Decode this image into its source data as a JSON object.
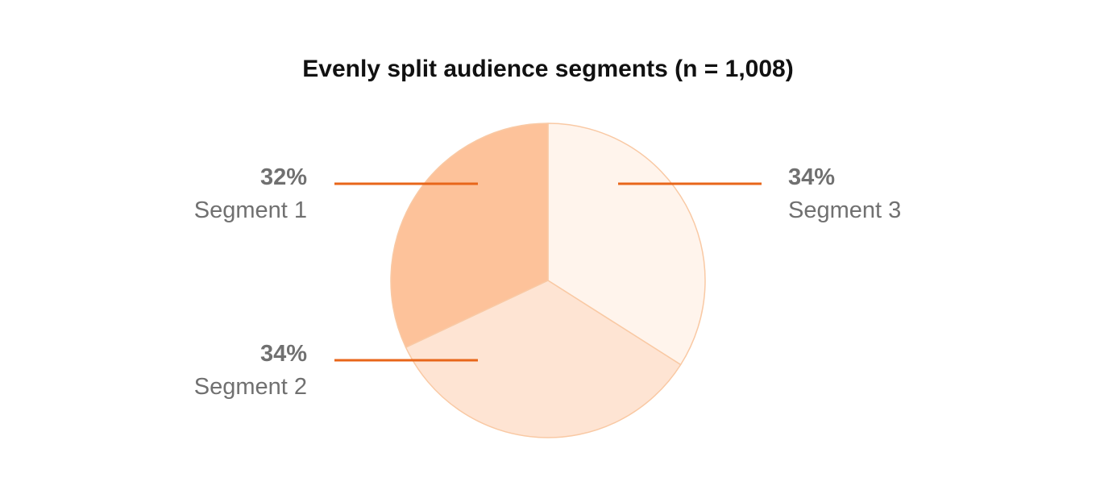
{
  "chart_data": {
    "type": "pie",
    "title": "Evenly split audience segments (n = 1,008)",
    "slices": [
      {
        "label": "Segment 3",
        "value": 34,
        "value_label": "34%",
        "color": "#FFF4EC"
      },
      {
        "label": "Segment 2",
        "value": 34,
        "value_label": "34%",
        "color": "#FEE4D3"
      },
      {
        "label": "Segment 1",
        "value": 32,
        "value_label": "32%",
        "color": "#FDC29A"
      }
    ],
    "stroke_color": "#F9C9A4",
    "leader_color": "#E8661A",
    "start": "top",
    "direction": "clockwise"
  }
}
